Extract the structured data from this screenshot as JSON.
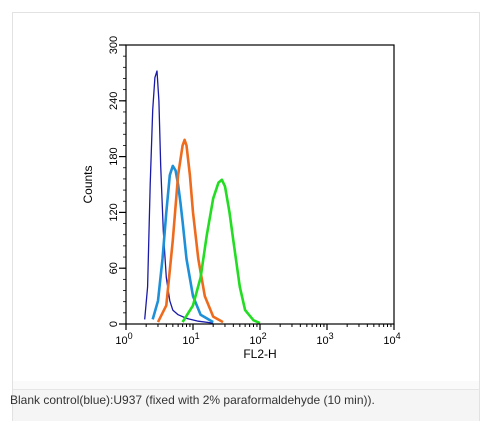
{
  "chart_data": {
    "type": "line",
    "xlabel": "FL2-H",
    "ylabel": "Counts",
    "x_scale": "log",
    "xlim": [
      1,
      10000
    ],
    "ylim": [
      0,
      300
    ],
    "x_ticks": [
      {
        "base": "10",
        "exp": "0",
        "value": 1
      },
      {
        "base": "10",
        "exp": "1",
        "value": 10
      },
      {
        "base": "10",
        "exp": "2",
        "value": 100
      },
      {
        "base": "10",
        "exp": "3",
        "value": 1000
      },
      {
        "base": "10",
        "exp": "4",
        "value": 10000
      }
    ],
    "y_ticks": [
      "0",
      "60",
      "120",
      "180",
      "240",
      "300"
    ],
    "series": [
      {
        "color": "#1a1aa8",
        "x": [
          1.9,
          2.1,
          2.3,
          2.5,
          2.7,
          2.9,
          3.1,
          3.3,
          3.6,
          4.0,
          4.5,
          5.0,
          6.0,
          8.0,
          12.0,
          20.0
        ],
        "y": [
          5,
          40,
          150,
          230,
          265,
          272,
          240,
          170,
          100,
          50,
          25,
          15,
          10,
          6,
          3,
          1
        ]
      },
      {
        "color": "#1e90d8",
        "x": [
          2.5,
          3.0,
          3.5,
          4.0,
          4.5,
          5.0,
          5.5,
          6.0,
          6.5,
          7.0,
          8.0,
          10.0,
          13.0,
          20.0
        ],
        "y": [
          5,
          25,
          70,
          120,
          160,
          170,
          165,
          150,
          130,
          110,
          70,
          30,
          10,
          2
        ]
      },
      {
        "color": "#ee6b1e",
        "x": [
          3.0,
          4.0,
          5.0,
          6.0,
          7.0,
          7.5,
          8.0,
          9.0,
          10.0,
          12.0,
          15.0,
          20.0,
          28.0
        ],
        "y": [
          2,
          20,
          90,
          160,
          192,
          198,
          192,
          160,
          120,
          70,
          30,
          8,
          2
        ]
      },
      {
        "color": "#22dd22",
        "x": [
          7.0,
          10.0,
          13.0,
          16.0,
          20.0,
          24.0,
          27.0,
          30.0,
          35.0,
          40.0,
          50.0,
          60.0,
          80.0,
          100.0
        ],
        "y": [
          2,
          20,
          50,
          95,
          135,
          152,
          155,
          148,
          120,
          90,
          40,
          15,
          4,
          1
        ]
      }
    ]
  },
  "caption": "Blank control(blue):U937 (fixed with 2% paraformaldehyde (10 min))."
}
